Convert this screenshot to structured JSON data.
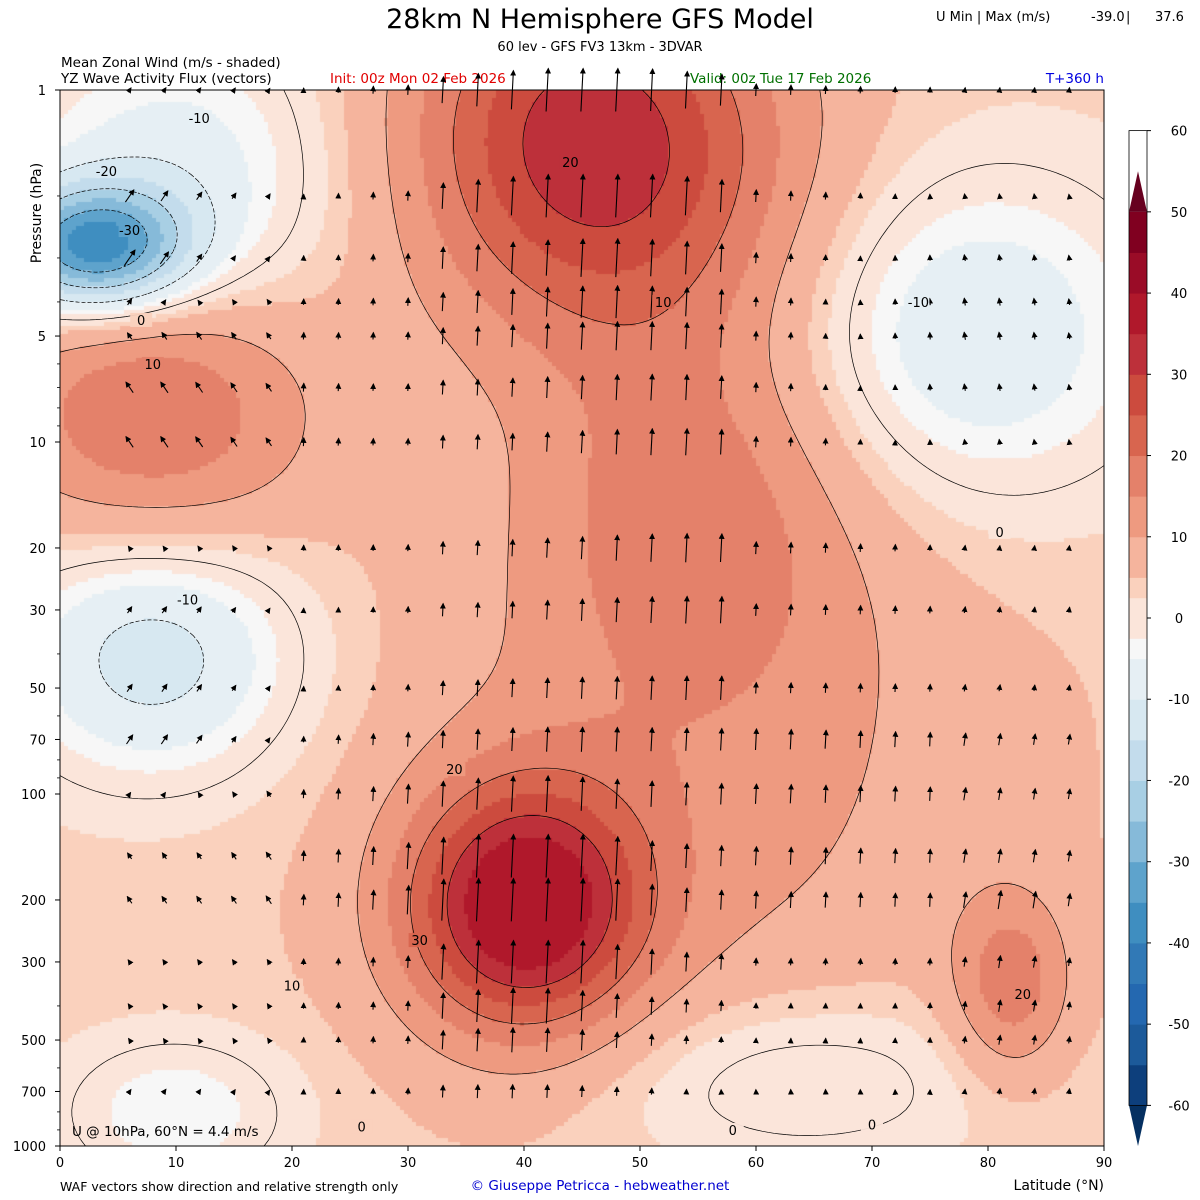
{
  "header": {
    "title": "28km N Hemisphere GFS Model",
    "subtitle": "60 lev - GFS FV3 13km - 3DVAR",
    "u_minmax_label": "U Min | Max (m/s)",
    "u_min": "-39.0",
    "u_sep": "|",
    "u_max": "37.6",
    "field_label_1": "Mean Zonal Wind (m/s - shaded)",
    "field_label_2": "YZ Wave Activity Flux (vectors)",
    "init": "Init: 00z Mon 02 Feb 2026",
    "valid": "Valid: 00z Tue 17 Feb 2026",
    "lead": "T+360 h"
  },
  "footer": {
    "note": "WAF vectors show direction and relative strength only",
    "credit": "© Giuseppe Petricca - hebweather.net"
  },
  "chart_data": {
    "type": "heatmap",
    "title": "28km N Hemisphere GFS Model",
    "xlabel": "Latitude (°N)",
    "ylabel": "Pressure (hPa)",
    "x_range": [
      0,
      90
    ],
    "x_ticks": [
      0,
      10,
      20,
      30,
      40,
      50,
      60,
      70,
      80,
      90
    ],
    "y_scale": "log",
    "y_range": [
      1000,
      1
    ],
    "y_ticks": [
      1,
      5,
      10,
      20,
      30,
      50,
      70,
      100,
      200,
      300,
      500,
      700,
      1000
    ],
    "colorbar": {
      "ticks": [
        60,
        50,
        40,
        30,
        20,
        10,
        0,
        -10,
        -20,
        -30,
        -40,
        -50,
        -60
      ],
      "levels": [
        -65,
        -60,
        -55,
        -50,
        -45,
        -40,
        -35,
        -30,
        -25,
        -20,
        -15,
        -10,
        -5,
        -2.5,
        2.5,
        5,
        10,
        15,
        20,
        25,
        30,
        35,
        40,
        45,
        50,
        55,
        60,
        65
      ],
      "colors": [
        "#053061",
        "#0d3f7c",
        "#1c5a9a",
        "#2468b0",
        "#3179b6",
        "#3f8ec0",
        "#5ea3cc",
        "#86bad9",
        "#a8cfe4",
        "#c3dcec",
        "#d7e8f1",
        "#e6eff4",
        "#f7f7f7",
        "#fbe5da",
        "#fad1bd",
        "#f5b49d",
        "#ee9a80",
        "#e4816a",
        "#d8654f",
        "#cc4b3e",
        "#bd303a",
        "#b0182b",
        "#9a0c27",
        "#800020",
        "#67001f"
      ]
    },
    "overlay_text": "U @ 10hPa, 60°N =  4.4 m/s",
    "contour_labels": [
      {
        "text": "-10",
        "lat": 12,
        "p": 1.2
      },
      {
        "text": "-20",
        "lat": 4,
        "p": 1.7
      },
      {
        "text": "-30",
        "lat": 6,
        "p": 2.5
      },
      {
        "text": "0",
        "lat": 7,
        "p": 4.5
      },
      {
        "text": "10",
        "lat": 8,
        "p": 6
      },
      {
        "text": "20",
        "lat": 44,
        "p": 1.6
      },
      {
        "text": "10",
        "lat": 52,
        "p": 4
      },
      {
        "text": "-10",
        "lat": 74,
        "p": 4
      },
      {
        "text": "0",
        "lat": 81,
        "p": 18
      },
      {
        "text": "-10",
        "lat": 11,
        "p": 28
      },
      {
        "text": "20",
        "lat": 34,
        "p": 85
      },
      {
        "text": "30",
        "lat": 31,
        "p": 260
      },
      {
        "text": "10",
        "lat": 20,
        "p": 350
      },
      {
        "text": "20",
        "lat": 83,
        "p": 370
      },
      {
        "text": "0",
        "lat": 26,
        "p": 880
      },
      {
        "text": "0",
        "lat": 58,
        "p": 900
      },
      {
        "text": "0",
        "lat": 70,
        "p": 870
      }
    ],
    "wind_features": [
      {
        "lat": 3,
        "p": 2.8,
        "u": -39,
        "sx": 8,
        "sp": 0.4
      },
      {
        "lat": 10,
        "p": 1.8,
        "u": -12,
        "sx": 14,
        "sp": 1.0
      },
      {
        "lat": 45,
        "p": 1.3,
        "u": 24,
        "sx": 15,
        "sp": 1.2
      },
      {
        "lat": 52,
        "p": 2.0,
        "u": 8,
        "sx": 18,
        "sp": 1.2
      },
      {
        "lat": 8,
        "p": 8.0,
        "u": 17,
        "sx": 13,
        "sp": 0.9
      },
      {
        "lat": 78,
        "p": 5.0,
        "u": -14,
        "sx": 16,
        "sp": 1.1
      },
      {
        "lat": 8,
        "p": 40,
        "u": -17,
        "sx": 12,
        "sp": 0.8
      },
      {
        "lat": 55,
        "p": 15,
        "u": 11,
        "sx": 14,
        "sp": 1.2
      },
      {
        "lat": 40,
        "p": 210,
        "u": 36,
        "sx": 10,
        "sp": 0.8
      },
      {
        "lat": 55,
        "p": 80,
        "u": 8,
        "sx": 24,
        "sp": 2.0
      },
      {
        "lat": 82,
        "p": 350,
        "u": 14,
        "sx": 5,
        "sp": 0.6
      },
      {
        "lat": 63,
        "p": 650,
        "u": -8,
        "sx": 18,
        "sp": 0.6
      },
      {
        "lat": 10,
        "p": 800,
        "u": -9,
        "sx": 10,
        "sp": 0.5
      }
    ],
    "wind_base": 4,
    "wind_range": {
      "min": -39.0,
      "max": 37.6
    },
    "vector_field": {
      "lat_step": 3,
      "levels_hPa": [
        1,
        2,
        3,
        4,
        5,
        7,
        10,
        20,
        30,
        50,
        70,
        100,
        150,
        200,
        300,
        400,
        500,
        700
      ]
    }
  }
}
